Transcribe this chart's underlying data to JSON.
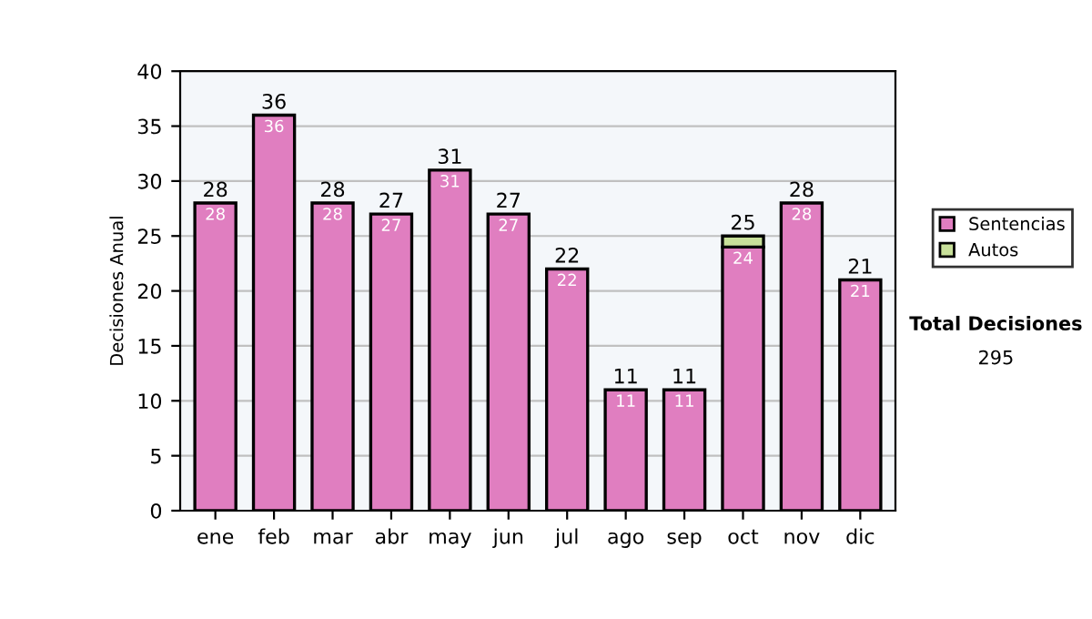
{
  "chart_data": {
    "type": "bar",
    "stacked": true,
    "ylabel": "Decisiones Anual",
    "categories": [
      "ene",
      "feb",
      "mar",
      "abr",
      "may",
      "jun",
      "jul",
      "ago",
      "sep",
      "oct",
      "nov",
      "dic"
    ],
    "series": [
      {
        "name": "Sentencias",
        "color": "#e07ec0",
        "values": [
          28,
          36,
          28,
          27,
          31,
          27,
          22,
          11,
          11,
          24,
          28,
          21
        ],
        "value_labels": [
          "28",
          "36",
          "28",
          "27",
          "31",
          "27",
          "22",
          "11",
          "11",
          "24",
          "28",
          "21"
        ]
      },
      {
        "name": "Autos",
        "color": "#c8e09a",
        "values": [
          null,
          null,
          null,
          null,
          null,
          null,
          null,
          null,
          null,
          1,
          null,
          null
        ]
      }
    ],
    "totals": [
      "28",
      "36",
      "28",
      "27",
      "31",
      "27",
      "22",
      "11",
      "11",
      "25",
      "28",
      "21"
    ],
    "ylim": [
      0,
      40
    ],
    "yticks": [
      0,
      5,
      10,
      15,
      20,
      25,
      30,
      35,
      40
    ],
    "grid": "y",
    "legend": "right",
    "annotations": [
      "Total Decisiones",
      "295"
    ]
  }
}
